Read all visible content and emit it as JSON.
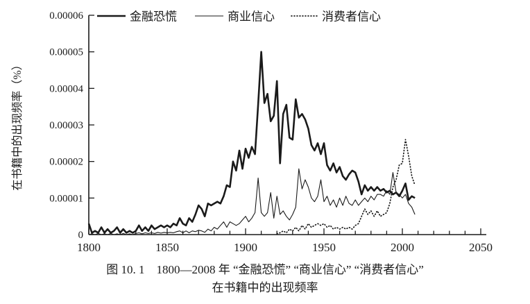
{
  "page": {
    "background": "#ffffff",
    "ink_color": "#1a1a1a"
  },
  "caption": {
    "line1": "图 10. 1　1800—2008 年 “金融恐慌” “商业信心” “消费者信心”",
    "line2": "在书籍中的出现频率"
  },
  "chart_data": {
    "type": "line",
    "title": "",
    "xlabel": "",
    "ylabel": "在书籍中的出现频率（%）",
    "xlim": [
      1800,
      2050
    ],
    "ylim": [
      0,
      6e-05
    ],
    "x_ticks_major": [
      1800,
      1850,
      1900,
      1950,
      2000,
      2050
    ],
    "x_minor_tick_step": 10,
    "y_ticks": [
      0,
      1e-05,
      2e-05,
      3e-05,
      4e-05,
      5e-05,
      6e-05
    ],
    "y_tick_labels": [
      "0",
      "0.00001",
      "0.00002",
      "0.00003",
      "0.00004",
      "0.00005",
      "0.00006"
    ],
    "grid": false,
    "legend_position": "top",
    "x_end_of_data": 2008,
    "value_unit": 1e-05,
    "series": [
      {
        "id": "financial-panic",
        "name": "金融恐慌",
        "style": "solid-thick",
        "x_start": 1800,
        "x_step": 2,
        "values": [
          0.3,
          0.05,
          0.1,
          0.05,
          0.2,
          0.05,
          0.15,
          0.05,
          0.1,
          0.2,
          0.05,
          0.15,
          0.05,
          0.1,
          0.05,
          0.1,
          0.25,
          0.1,
          0.2,
          0.1,
          0.25,
          0.15,
          0.2,
          0.25,
          0.2,
          0.25,
          0.2,
          0.3,
          0.25,
          0.45,
          0.3,
          0.25,
          0.45,
          0.35,
          0.55,
          0.8,
          0.7,
          0.5,
          0.85,
          0.8,
          0.85,
          0.9,
          0.85,
          1.05,
          1.35,
          1.3,
          2.0,
          1.75,
          2.3,
          1.8,
          2.35,
          2.1,
          2.4,
          2.2,
          3.55,
          5.0,
          3.6,
          3.85,
          3.1,
          3.25,
          4.2,
          1.95,
          3.3,
          3.55,
          2.65,
          2.6,
          3.7,
          3.2,
          3.3,
          3.15,
          2.9,
          2.45,
          2.3,
          2.5,
          2.2,
          2.5,
          1.9,
          1.75,
          1.95,
          1.7,
          1.85,
          1.6,
          1.5,
          1.65,
          1.75,
          1.7,
          1.45,
          1.1,
          1.35,
          1.2,
          1.3,
          1.2,
          1.3,
          1.2,
          1.25,
          1.15,
          1.2,
          1.1,
          1.15,
          1.05,
          1.2,
          1.4,
          0.95,
          1.05,
          1.0
        ]
      },
      {
        "id": "business-confidence",
        "name": "商业信心",
        "style": "solid-thin",
        "x_start": 1800,
        "x_step": 2,
        "values": [
          0,
          0.02,
          0,
          0.03,
          0,
          0.02,
          0,
          0.03,
          0,
          0.02,
          0,
          0.03,
          0,
          0.02,
          0,
          0.03,
          0.05,
          0.02,
          0.05,
          0.03,
          0.05,
          0.03,
          0.06,
          0.04,
          0.06,
          0.05,
          0.06,
          0.05,
          0.08,
          0.1,
          0.05,
          0.1,
          0.05,
          0.1,
          0.08,
          0.12,
          0.1,
          0.06,
          0.15,
          0.1,
          0.2,
          0.15,
          0.25,
          0.35,
          0.2,
          0.35,
          0.3,
          0.25,
          0.3,
          0.4,
          0.5,
          0.35,
          0.45,
          0.6,
          1.55,
          0.6,
          0.5,
          0.6,
          1.15,
          0.45,
          1.05,
          0.55,
          0.65,
          0.5,
          0.4,
          0.55,
          0.75,
          1.8,
          1.25,
          1.5,
          1.3,
          1.0,
          0.9,
          1.05,
          1.5,
          0.9,
          1.05,
          0.8,
          0.95,
          0.75,
          1.0,
          0.8,
          1.05,
          0.85,
          0.8,
          0.95,
          0.8,
          0.9,
          1.0,
          0.9,
          1.05,
          0.95,
          1.1,
          1.1,
          1.05,
          1.2,
          1.1,
          1.7,
          1.15,
          1.1,
          1.0,
          1.1,
          0.85,
          0.75,
          0.55
        ]
      },
      {
        "id": "consumer-confidence",
        "name": "消费者信心",
        "style": "dotted",
        "x_start": 1920,
        "x_step": 2,
        "values": [
          0.02,
          0.05,
          0.1,
          0.05,
          0.15,
          0.1,
          0.2,
          0.1,
          0.25,
          0.15,
          0.3,
          0.2,
          0.25,
          0.3,
          0.25,
          0.3,
          0.2,
          0.25,
          0.15,
          0.2,
          0.15,
          0.2,
          0.15,
          0.2,
          0.15,
          0.25,
          0.3,
          0.5,
          0.7,
          0.55,
          0.65,
          0.5,
          0.65,
          0.5,
          0.55,
          0.6,
          0.85,
          1.3,
          1.5,
          1.9,
          1.95,
          2.6,
          2.15,
          1.6,
          1.35
        ]
      }
    ]
  }
}
